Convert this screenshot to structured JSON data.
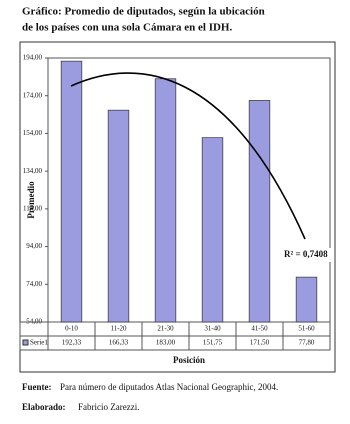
{
  "chart_data": {
    "type": "bar",
    "title": [
      "Gráfico: Promedio de diputados, según la ubicación",
      "de los países con una sola Cámara en el IDH."
    ],
    "categories": [
      "0-10",
      "11-20",
      "21-30",
      "31-40",
      "41-50",
      "51-60"
    ],
    "series": [
      {
        "name": "Serie1",
        "color": "#9b9be0",
        "values": [
          192.33,
          166.33,
          183.0,
          151.75,
          171.5,
          77.8
        ],
        "value_labels": [
          "192,33",
          "166,33",
          "183,00",
          "151,75",
          "171,50",
          "77,80"
        ]
      }
    ],
    "ylim": [
      54,
      194
    ],
    "yticks": [
      {
        "value": 54,
        "label": "54,00"
      },
      {
        "value": 74,
        "label": "74,00"
      },
      {
        "value": 94,
        "label": "94,00"
      },
      {
        "value": 114,
        "label": "114,00"
      },
      {
        "value": 134,
        "label": "134,00"
      },
      {
        "value": 154,
        "label": "154,00"
      },
      {
        "value": 174,
        "label": "174,00"
      },
      {
        "value": 194,
        "label": "194,00"
      }
    ],
    "y_label": "Promedio",
    "x_label": "Posición",
    "annotation": "R² = 0,7408",
    "source_label": "Fuente:",
    "source": "Para número de diputados Atlas Nacional Geographic, 2004.",
    "author_label": "Elaborado:",
    "author": "Fabricio Zarezzi."
  }
}
